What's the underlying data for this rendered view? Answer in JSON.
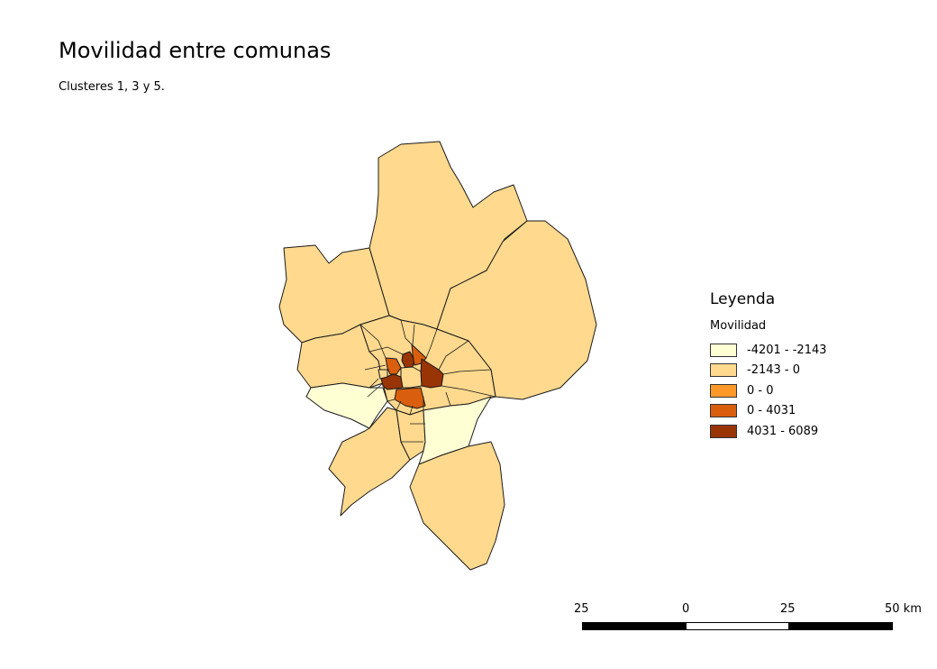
{
  "title": "Movilidad entre comunas",
  "subtitle": "Clusteres 1, 3 y 5.",
  "legend": {
    "title": "Leyenda",
    "layer": "Movilidad",
    "classes": [
      {
        "label": "-4201 - -2143",
        "color": "#ffffd4"
      },
      {
        "label": "-2143 - 0",
        "color": "#fed98e"
      },
      {
        "label": "0 - 0",
        "color": "#fe9929"
      },
      {
        "label": "0 - 4031",
        "color": "#d95f0e"
      },
      {
        "label": "4031 - 6089",
        "color": "#993404"
      }
    ]
  },
  "scale_bar": {
    "labels": [
      "25",
      "0",
      "25",
      "50 km"
    ]
  }
}
